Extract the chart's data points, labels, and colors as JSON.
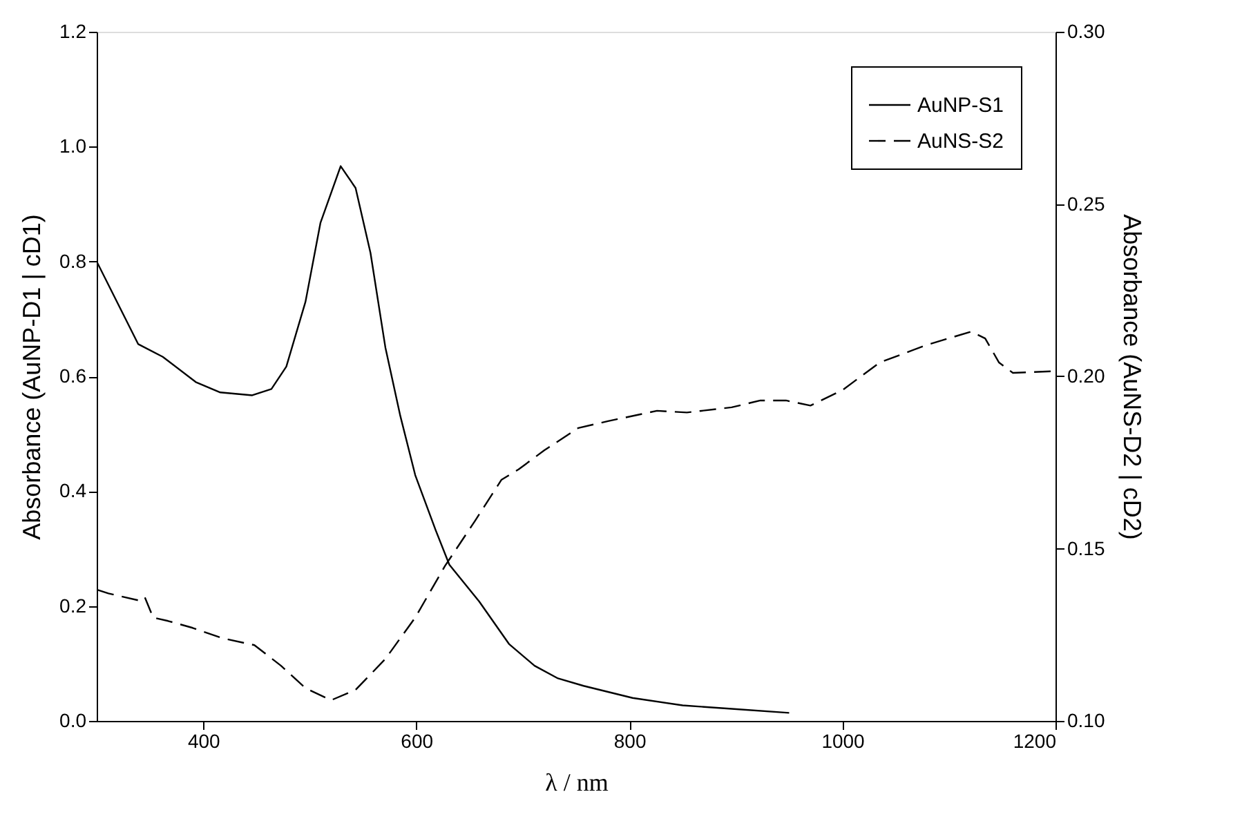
{
  "chart_data": {
    "type": "line",
    "xlabel": "λ / nm",
    "ylabel": "Absorbance (AuNP-D1 | cD1)",
    "y2label": "Absorbance (AuNS-D2 | cD2)",
    "xlim": [
      300,
      1200
    ],
    "xticks": [
      400,
      600,
      800,
      1000,
      1200
    ],
    "ylim": [
      0,
      1.2
    ],
    "yticks": [
      {
        "value": 0,
        "label": "0.0"
      },
      {
        "value": 0.2,
        "label": "0.2"
      },
      {
        "value": 0.4,
        "label": "0.4"
      },
      {
        "value": 0.6,
        "label": "0.6"
      },
      {
        "value": 0.8,
        "label": "0.8"
      },
      {
        "value": 1,
        "label": "1.0"
      },
      {
        "value": 1.2,
        "label": "1.2"
      }
    ],
    "y2lim": [
      0.1,
      0.3
    ],
    "y2ticks": [
      {
        "value": 0.1,
        "label": "0.10"
      },
      {
        "value": 0.15,
        "label": "0.15"
      },
      {
        "value": 0.2,
        "label": "0.20"
      },
      {
        "value": 0.25,
        "label": "0.25"
      },
      {
        "value": 0.3,
        "label": "0.30"
      }
    ],
    "grid": false,
    "legend": "top right",
    "series": [
      {
        "name": "AuNP-S1",
        "color": "#000000",
        "line_style": "solid",
        "axis": "y",
        "x": [
          300,
          339,
          362,
          393,
          416,
          446,
          464,
          478,
          496,
          510,
          529,
          543,
          557,
          571,
          585,
          599,
          618,
          631,
          659,
          687,
          711,
          733,
          757,
          803,
          850,
          896,
          950
        ],
        "values": [
          0.8,
          0.656,
          0.634,
          0.59,
          0.572,
          0.567,
          0.578,
          0.617,
          0.73,
          0.867,
          0.966,
          0.928,
          0.815,
          0.65,
          0.531,
          0.428,
          0.333,
          0.272,
          0.208,
          0.134,
          0.096,
          0.074,
          0.061,
          0.04,
          0.027,
          0.021,
          0.014
        ]
      },
      {
        "name": "AuNS-S2",
        "color": "#000000",
        "line_style": "dashed",
        "axis": "y2",
        "x": [
          301,
          311,
          339,
          345,
          353,
          367,
          390,
          418,
          448,
          473,
          496,
          520,
          543,
          571,
          599,
          627,
          655,
          680,
          696,
          720,
          752,
          780,
          826,
          854,
          896,
          923,
          947,
          970,
          1000,
          1035,
          1078,
          1121,
          1134,
          1147,
          1160,
          1200
        ],
        "values": [
          0.138,
          0.137,
          0.135,
          0.136,
          0.13,
          0.129,
          0.127,
          0.124,
          0.122,
          0.116,
          0.1095,
          0.106,
          0.109,
          0.118,
          0.13,
          0.145,
          0.158,
          0.17,
          0.173,
          0.1785,
          0.185,
          0.187,
          0.19,
          0.1895,
          0.191,
          0.193,
          0.193,
          0.1915,
          0.196,
          0.204,
          0.209,
          0.213,
          0.211,
          0.204,
          0.201,
          0.2015
        ]
      }
    ]
  }
}
